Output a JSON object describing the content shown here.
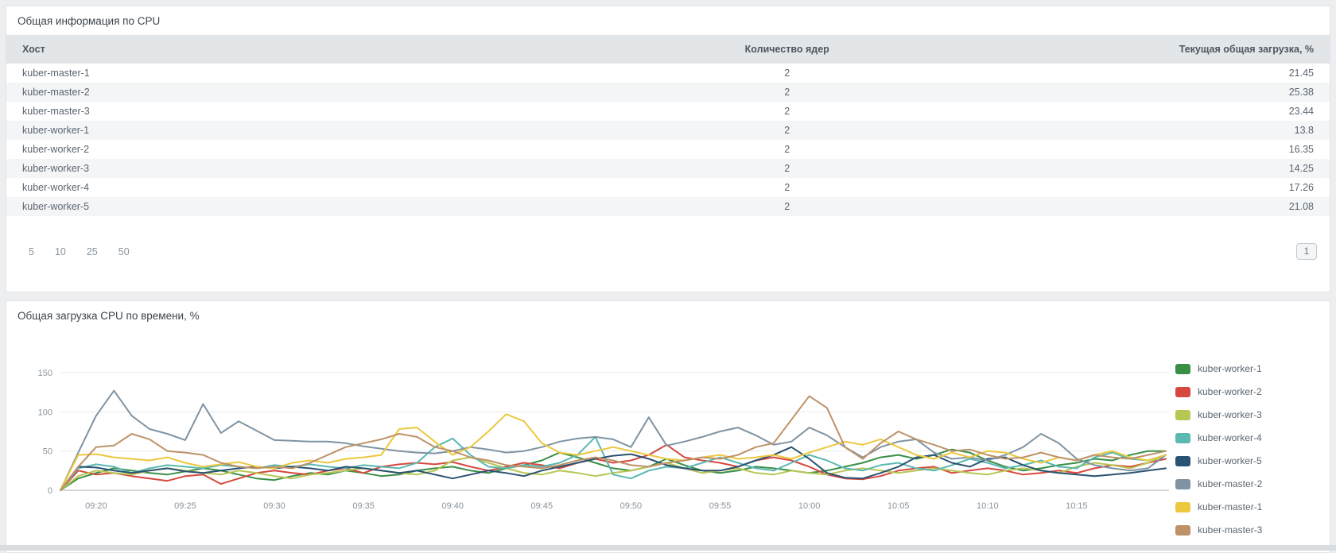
{
  "table_panel": {
    "title": "Общая информация по CPU",
    "columns": [
      "Хост",
      "Количество ядер",
      "Текущая общая загрузка, %"
    ],
    "rows": [
      {
        "host": "kuber-master-1",
        "cores": "2",
        "load": "21.45"
      },
      {
        "host": "kuber-master-2",
        "cores": "2",
        "load": "25.38"
      },
      {
        "host": "kuber-master-3",
        "cores": "2",
        "load": "23.44"
      },
      {
        "host": "kuber-worker-1",
        "cores": "2",
        "load": "13.8"
      },
      {
        "host": "kuber-worker-2",
        "cores": "2",
        "load": "16.35"
      },
      {
        "host": "kuber-worker-3",
        "cores": "2",
        "load": "14.25"
      },
      {
        "host": "kuber-worker-4",
        "cores": "2",
        "load": "17.26"
      },
      {
        "host": "kuber-worker-5",
        "cores": "2",
        "load": "21.08"
      }
    ],
    "page_sizes": [
      "5",
      "10",
      "25",
      "50"
    ],
    "current_page": "1"
  },
  "chart_panel": {
    "title": "Общая загрузка CPU по времени, %"
  },
  "chart_data": {
    "type": "line",
    "title": "Общая загрузка CPU по времени, %",
    "xlabel": "",
    "ylabel": "",
    "ylim": [
      0,
      150
    ],
    "y_ticks": [
      0,
      50,
      100,
      150
    ],
    "grid": true,
    "legend_position": "right",
    "x": [
      "09:18",
      "09:19",
      "09:20",
      "09:21",
      "09:22",
      "09:23",
      "09:24",
      "09:25",
      "09:26",
      "09:27",
      "09:28",
      "09:29",
      "09:30",
      "09:31",
      "09:32",
      "09:33",
      "09:34",
      "09:35",
      "09:36",
      "09:37",
      "09:38",
      "09:39",
      "09:40",
      "09:41",
      "09:42",
      "09:43",
      "09:44",
      "09:45",
      "09:46",
      "09:47",
      "09:48",
      "09:49",
      "09:50",
      "09:51",
      "09:52",
      "09:53",
      "09:54",
      "09:55",
      "09:56",
      "09:57",
      "09:58",
      "09:59",
      "10:00",
      "10:01",
      "10:02",
      "10:03",
      "10:04",
      "10:05",
      "10:06",
      "10:07",
      "10:08",
      "10:09",
      "10:10",
      "10:11",
      "10:12",
      "10:13",
      "10:14",
      "10:15",
      "10:16",
      "10:17",
      "10:18",
      "10:19",
      "10:20"
    ],
    "x_ticks": [
      "09:20",
      "09:25",
      "09:30",
      "09:35",
      "09:40",
      "09:45",
      "09:50",
      "09:55",
      "10:00",
      "10:05",
      "10:10",
      "10:15"
    ],
    "series": [
      {
        "name": "kuber-worker-1",
        "color": "#3a8f47",
        "values": [
          0,
          15,
          22,
          28,
          25,
          22,
          20,
          24,
          28,
          25,
          20,
          15,
          13,
          18,
          22,
          20,
          25,
          22,
          18,
          20,
          25,
          28,
          30,
          25,
          22,
          28,
          32,
          38,
          48,
          42,
          35,
          28,
          25,
          30,
          40,
          32,
          25,
          22,
          25,
          30,
          28,
          25,
          22,
          25,
          30,
          35,
          42,
          45,
          40,
          45,
          52,
          48,
          38,
          30,
          25,
          28,
          32,
          35,
          40,
          38,
          45,
          50,
          50
        ]
      },
      {
        "name": "kuber-worker-2",
        "color": "#d6483f",
        "values": [
          0,
          25,
          20,
          22,
          18,
          15,
          12,
          18,
          20,
          8,
          15,
          22,
          25,
          22,
          20,
          25,
          28,
          22,
          30,
          33,
          35,
          33,
          36,
          30,
          25,
          30,
          35,
          32,
          28,
          35,
          40,
          35,
          38,
          45,
          58,
          42,
          38,
          35,
          30,
          38,
          42,
          38,
          30,
          20,
          15,
          14,
          18,
          25,
          28,
          30,
          22,
          25,
          28,
          25,
          20,
          22,
          25,
          22,
          28,
          32,
          30,
          35,
          40
        ]
      },
      {
        "name": "kuber-worker-3",
        "color": "#b8c653",
        "values": [
          0,
          18,
          25,
          22,
          20,
          25,
          28,
          25,
          22,
          20,
          25,
          22,
          18,
          15,
          20,
          22,
          25,
          28,
          25,
          22,
          20,
          25,
          38,
          42,
          35,
          28,
          22,
          20,
          25,
          22,
          18,
          22,
          25,
          30,
          35,
          28,
          22,
          25,
          28,
          22,
          20,
          25,
          22,
          20,
          25,
          28,
          25,
          22,
          25,
          28,
          25,
          22,
          20,
          25,
          28,
          25,
          22,
          30,
          35,
          32,
          28,
          35,
          45
        ]
      },
      {
        "name": "kuber-worker-4",
        "color": "#5bb8b2",
        "values": [
          0,
          28,
          33,
          30,
          22,
          28,
          32,
          30,
          28,
          32,
          30,
          28,
          32,
          30,
          33,
          30,
          28,
          32,
          30,
          28,
          35,
          55,
          66,
          45,
          30,
          28,
          32,
          30,
          35,
          45,
          68,
          20,
          15,
          25,
          30,
          28,
          35,
          42,
          35,
          28,
          25,
          35,
          45,
          38,
          28,
          25,
          32,
          35,
          28,
          25,
          32,
          40,
          35,
          28,
          32,
          38,
          30,
          28,
          42,
          48,
          40,
          38,
          45
        ]
      },
      {
        "name": "kuber-worker-5",
        "color": "#2a5272",
        "values": [
          0,
          30,
          29,
          25,
          22,
          25,
          28,
          24,
          22,
          25,
          28,
          30,
          28,
          30,
          28,
          25,
          30,
          28,
          25,
          22,
          25,
          20,
          15,
          20,
          25,
          22,
          18,
          25,
          30,
          35,
          40,
          44,
          46,
          40,
          32,
          28,
          25,
          25,
          30,
          38,
          45,
          55,
          40,
          22,
          16,
          15,
          22,
          30,
          42,
          45,
          35,
          30,
          40,
          42,
          32,
          25,
          22,
          20,
          18,
          20,
          22,
          25,
          28
        ]
      },
      {
        "name": "kuber-master-2",
        "color": "#7f93a2",
        "values": [
          0,
          48,
          95,
          127,
          95,
          78,
          72,
          64,
          110,
          73,
          88,
          76,
          64,
          63,
          62,
          62,
          60,
          56,
          53,
          50,
          48,
          47,
          50,
          55,
          52,
          48,
          50,
          55,
          62,
          66,
          68,
          65,
          55,
          93,
          57,
          62,
          68,
          75,
          80,
          70,
          58,
          62,
          80,
          70,
          55,
          42,
          55,
          62,
          65,
          48,
          40,
          42,
          38,
          45,
          55,
          72,
          60,
          40,
          32,
          28,
          25,
          28,
          45
        ]
      },
      {
        "name": "kuber-master-1",
        "color": "#ecc83e",
        "values": [
          0,
          45,
          46,
          42,
          40,
          38,
          42,
          35,
          30,
          33,
          36,
          30,
          28,
          35,
          38,
          35,
          40,
          42,
          45,
          78,
          80,
          62,
          45,
          55,
          75,
          97,
          88,
          60,
          48,
          45,
          50,
          55,
          50,
          45,
          40,
          38,
          42,
          45,
          40,
          42,
          45,
          40,
          48,
          55,
          62,
          58,
          65,
          55,
          45,
          40,
          48,
          42,
          50,
          48,
          40,
          35,
          42,
          38,
          45,
          50,
          42,
          38,
          45
        ]
      },
      {
        "name": "kuber-master-3",
        "color": "#bd9268",
        "values": [
          0,
          30,
          55,
          57,
          72,
          65,
          50,
          48,
          45,
          35,
          30,
          28,
          30,
          28,
          35,
          45,
          55,
          60,
          65,
          72,
          68,
          55,
          50,
          42,
          38,
          32,
          30,
          28,
          32,
          38,
          42,
          38,
          32,
          30,
          35,
          38,
          42,
          40,
          45,
          55,
          60,
          90,
          120,
          105,
          55,
          40,
          60,
          75,
          65,
          58,
          50,
          52,
          45,
          40,
          42,
          48,
          42,
          38,
          45,
          42,
          40,
          45,
          50
        ]
      }
    ]
  },
  "colors": {
    "page_bg": "#eceef0",
    "panel_bg": "#ffffff",
    "panel_border": "#e0e3e6",
    "table_header_bg": "#e3e6e9",
    "row_stripe": "#f3f5f6",
    "grid_line": "#e9ebee",
    "axis_line": "#c6cbd0",
    "muted_text": "#8a939c"
  }
}
